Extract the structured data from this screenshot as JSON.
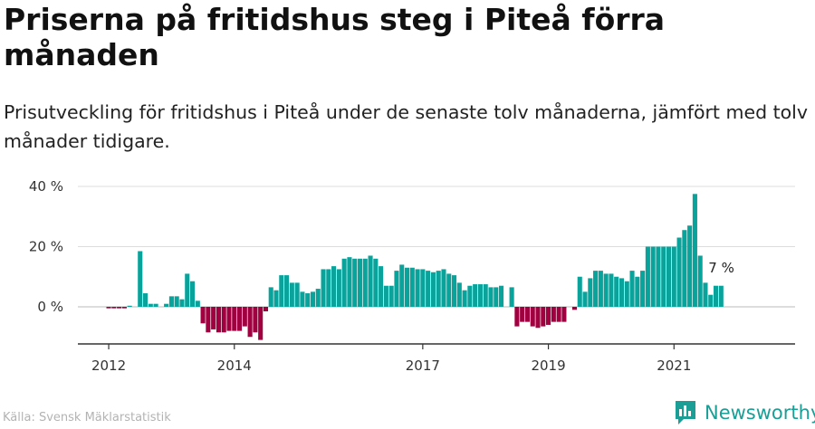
{
  "title": "Priserna på fritidshus steg i Piteå förra månaden",
  "subtitle": "Prisutveckling för fritidshus i Piteå under de senaste tolv månaderna, jämfört med tolv månader tidigare.",
  "source": "Källa: Svensk Mäklarstatistik",
  "brand": "Newsworthy",
  "colors": {
    "positive": "#0aa39c",
    "negative": "#a0003f",
    "grid": "#dddddd",
    "axis": "#333333",
    "brand": "#1a9e96"
  },
  "chart_data": {
    "type": "bar",
    "title": "Priserna på fritidshus steg i Piteå förra månaden",
    "xlabel": "",
    "ylabel": "",
    "ylim": [
      -12,
      40
    ],
    "y_ticks": [
      0,
      20,
      40
    ],
    "y_tick_labels": [
      "0 %",
      "20 %",
      "40 %"
    ],
    "x_tick_labels": [
      "2012",
      "2014",
      "2017",
      "2019",
      "2021"
    ],
    "annotation": "7 %",
    "grid": true,
    "categories": [
      "2012-01",
      "2012-02",
      "2012-03",
      "2012-04",
      "2012-05",
      "2012-06",
      "2012-07",
      "2012-08",
      "2012-09",
      "2012-10",
      "2012-11",
      "2012-12",
      "2013-01",
      "2013-02",
      "2013-03",
      "2013-04",
      "2013-05",
      "2013-06",
      "2013-07",
      "2013-08",
      "2013-09",
      "2013-10",
      "2013-11",
      "2013-12",
      "2014-01",
      "2014-02",
      "2014-03",
      "2014-04",
      "2014-05",
      "2014-06",
      "2014-07",
      "2014-08",
      "2014-09",
      "2014-10",
      "2014-11",
      "2014-12",
      "2015-01",
      "2015-02",
      "2015-03",
      "2015-04",
      "2015-05",
      "2015-06",
      "2015-07",
      "2015-08",
      "2015-09",
      "2015-10",
      "2015-11",
      "2015-12",
      "2016-01",
      "2016-02",
      "2016-03",
      "2016-04",
      "2016-05",
      "2016-06",
      "2016-07",
      "2016-08",
      "2016-09",
      "2016-10",
      "2016-11",
      "2016-12",
      "2017-01",
      "2017-02",
      "2017-03",
      "2017-04",
      "2017-05",
      "2017-06",
      "2017-07",
      "2017-08",
      "2017-09",
      "2017-10",
      "2017-11",
      "2017-12",
      "2018-01",
      "2018-02",
      "2018-03",
      "2018-04",
      "2018-05",
      "2018-06",
      "2018-07",
      "2018-08",
      "2018-09",
      "2018-10",
      "2018-11",
      "2018-12",
      "2019-01",
      "2019-02",
      "2019-03",
      "2019-04",
      "2019-05",
      "2019-06",
      "2019-07",
      "2019-08",
      "2019-09",
      "2019-10",
      "2019-11",
      "2019-12",
      "2020-01",
      "2020-02",
      "2020-03",
      "2020-04",
      "2020-05",
      "2020-06",
      "2020-07",
      "2020-08",
      "2020-09",
      "2020-10",
      "2020-11",
      "2020-12",
      "2021-01",
      "2021-02",
      "2021-03",
      "2021-04",
      "2021-05",
      "2021-06",
      "2021-07",
      "2021-08",
      "2021-09",
      "2021-10",
      "2021-11",
      "2021-12"
    ],
    "values": [
      -0.5,
      -0.5,
      -0.5,
      -0.5,
      0.3,
      null,
      18.5,
      4.5,
      1,
      1,
      null,
      1,
      3.5,
      3.5,
      2.5,
      11,
      8.5,
      2,
      -5.5,
      -8.5,
      -7.5,
      -8.5,
      -8.5,
      -8,
      -8,
      -8,
      -6.5,
      -10,
      -8.5,
      -11,
      -1.5,
      6.5,
      5.5,
      10.5,
      10.5,
      8,
      8,
      5,
      4.5,
      5,
      6,
      12.5,
      12.5,
      13.5,
      12.5,
      16,
      16.5,
      16,
      16,
      16,
      17,
      16,
      13.5,
      7,
      7,
      12,
      14,
      13,
      13,
      12.5,
      12.5,
      12,
      11.5,
      12,
      12.5,
      11,
      10.5,
      8,
      5.5,
      7,
      7.5,
      7.5,
      7.5,
      6.5,
      6.5,
      7,
      null,
      6.5,
      -6.5,
      -5,
      -5,
      -6.5,
      -7,
      -6.5,
      -6,
      -5,
      -5,
      -5,
      null,
      -1,
      10,
      5,
      9.5,
      12,
      12,
      11,
      11,
      10,
      9.5,
      8.5,
      12,
      10,
      12,
      20,
      20,
      20,
      20,
      20,
      20,
      23,
      25.5,
      27,
      37.5,
      17,
      8,
      4,
      7,
      7,
      null,
      null
    ]
  }
}
